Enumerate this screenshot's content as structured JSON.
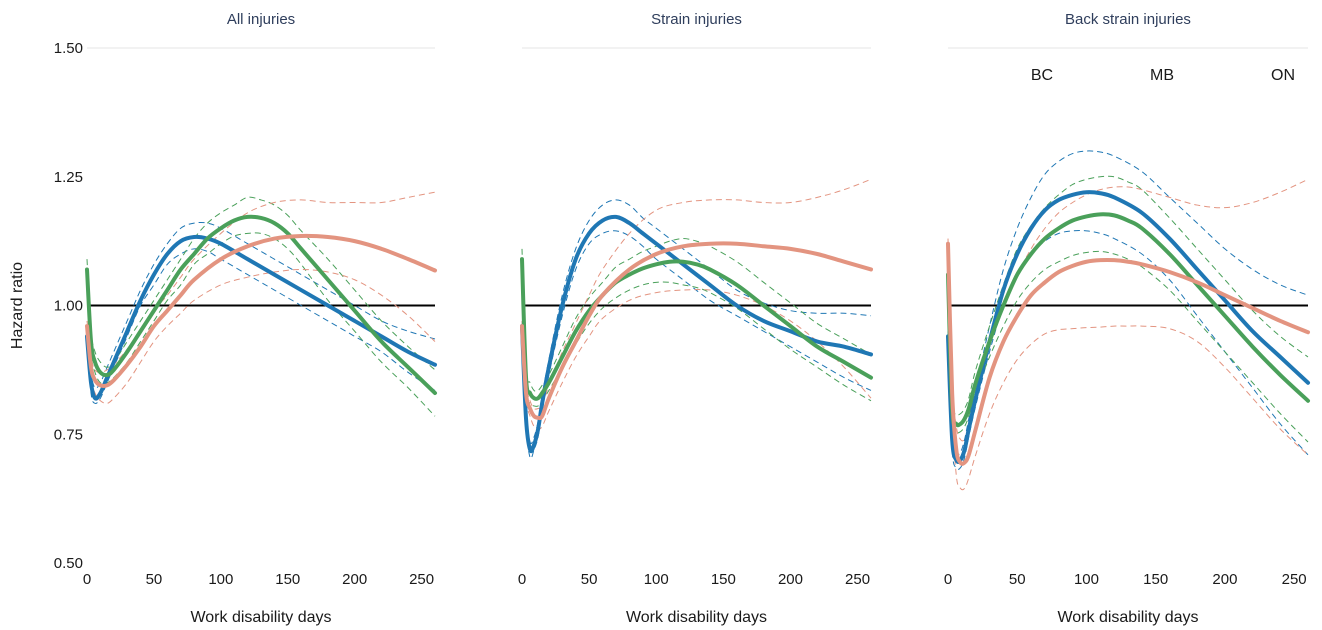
{
  "chart_data": {
    "type": "line",
    "ylabel": "Hazard ratio",
    "xlabel": "Work disability days",
    "ylim": [
      0.5,
      1.5
    ],
    "xlim": [
      0,
      260
    ],
    "yticks": [
      "0.50",
      "0.75",
      "1.00",
      "1.25",
      "1.50"
    ],
    "xticks": [
      "0",
      "50",
      "100",
      "150",
      "200",
      "250"
    ],
    "reference_line": 1.0,
    "legend": [
      "BC",
      "MB",
      "ON"
    ],
    "legend_placement": "top-right of third panel",
    "series_colors": {
      "BC": "#1f77b4",
      "MB": "#4aa05a",
      "ON": "#e39480"
    },
    "panels": [
      {
        "title": "All injuries",
        "series": [
          {
            "name": "BC",
            "x": [
              0,
              3,
              6,
              10,
              15,
              20,
              30,
              40,
              50,
              60,
              70,
              80,
              90,
              100,
              120,
              140,
              160,
              180,
              200,
              220,
              240,
              260
            ],
            "y": [
              0.94,
              0.85,
              0.82,
              0.83,
              0.86,
              0.89,
              0.95,
              1.01,
              1.06,
              1.1,
              1.125,
              1.133,
              1.13,
              1.12,
              1.09,
              1.06,
              1.03,
              1.0,
              0.97,
              0.94,
              0.91,
              0.885
            ],
            "lower": [
              0.93,
              0.83,
              0.81,
              0.82,
              0.85,
              0.88,
              0.94,
              1.0,
              1.04,
              1.08,
              1.1,
              1.11,
              1.105,
              1.09,
              1.06,
              1.03,
              1.0,
              0.97,
              0.94,
              0.91,
              0.87,
              0.835
            ],
            "upper": [
              0.95,
              0.87,
              0.84,
              0.85,
              0.88,
              0.91,
              0.97,
              1.03,
              1.08,
              1.12,
              1.15,
              1.16,
              1.16,
              1.15,
              1.12,
              1.09,
              1.06,
              1.03,
              1.0,
              0.97,
              0.95,
              0.935
            ]
          },
          {
            "name": "MB",
            "x": [
              0,
              3,
              6,
              10,
              15,
              20,
              30,
              40,
              50,
              60,
              70,
              80,
              90,
              100,
              110,
              120,
              130,
              140,
              150,
              160,
              180,
              200,
              220,
              240,
              260
            ],
            "y": [
              1.07,
              0.93,
              0.89,
              0.87,
              0.865,
              0.875,
              0.91,
              0.95,
              0.99,
              1.03,
              1.07,
              1.1,
              1.13,
              1.15,
              1.165,
              1.172,
              1.17,
              1.16,
              1.14,
              1.11,
              1.05,
              0.99,
              0.93,
              0.88,
              0.83
            ],
            "lower": [
              1.05,
              0.91,
              0.87,
              0.85,
              0.85,
              0.86,
              0.89,
              0.93,
              0.97,
              1.01,
              1.04,
              1.08,
              1.1,
              1.12,
              1.135,
              1.14,
              1.14,
              1.13,
              1.11,
              1.08,
              1.01,
              0.95,
              0.89,
              0.84,
              0.785
            ],
            "upper": [
              1.09,
              0.95,
              0.91,
              0.89,
              0.88,
              0.89,
              0.93,
              0.97,
              1.01,
              1.05,
              1.09,
              1.13,
              1.16,
              1.18,
              1.195,
              1.21,
              1.205,
              1.195,
              1.175,
              1.145,
              1.09,
              1.03,
              0.97,
              0.92,
              0.875
            ]
          },
          {
            "name": "ON",
            "x": [
              0,
              3,
              6,
              10,
              15,
              20,
              30,
              40,
              50,
              60,
              70,
              80,
              100,
              120,
              140,
              160,
              180,
              200,
              220,
              240,
              260
            ],
            "y": [
              0.96,
              0.88,
              0.855,
              0.845,
              0.845,
              0.855,
              0.885,
              0.92,
              0.96,
              0.99,
              1.02,
              1.05,
              1.09,
              1.115,
              1.13,
              1.135,
              1.133,
              1.125,
              1.11,
              1.09,
              1.068
            ],
            "lower": [
              0.95,
              0.86,
              0.83,
              0.815,
              0.81,
              0.82,
              0.85,
              0.89,
              0.93,
              0.96,
              0.985,
              1.01,
              1.04,
              1.055,
              1.065,
              1.07,
              1.065,
              1.05,
              1.02,
              0.98,
              0.93
            ],
            "upper": [
              0.97,
              0.9,
              0.875,
              0.87,
              0.875,
              0.885,
              0.915,
              0.95,
              0.99,
              1.02,
              1.055,
              1.09,
              1.14,
              1.18,
              1.2,
              1.205,
              1.2,
              1.2,
              1.2,
              1.21,
              1.22
            ]
          }
        ]
      },
      {
        "title": "Strain injuries",
        "series": [
          {
            "name": "BC",
            "x": [
              0,
              3,
              6,
              9,
              12,
              15,
              20,
              30,
              40,
              50,
              60,
              70,
              80,
              90,
              100,
              120,
              140,
              160,
              180,
              200,
              220,
              240,
              260
            ],
            "y": [
              0.96,
              0.78,
              0.72,
              0.73,
              0.76,
              0.81,
              0.88,
              1.0,
              1.09,
              1.14,
              1.165,
              1.172,
              1.16,
              1.14,
              1.12,
              1.08,
              1.04,
              1.0,
              0.97,
              0.95,
              0.93,
              0.92,
              0.905
            ],
            "lower": [
              0.95,
              0.77,
              0.705,
              0.72,
              0.745,
              0.795,
              0.865,
              0.98,
              1.07,
              1.12,
              1.14,
              1.145,
              1.135,
              1.115,
              1.09,
              1.05,
              1.01,
              0.98,
              0.95,
              0.92,
              0.89,
              0.86,
              0.835
            ],
            "upper": [
              0.97,
              0.8,
              0.735,
              0.745,
              0.775,
              0.825,
              0.895,
              1.02,
              1.11,
              1.165,
              1.195,
              1.205,
              1.195,
              1.17,
              1.15,
              1.11,
              1.07,
              1.03,
              1.005,
              0.99,
              0.985,
              0.985,
              0.98
            ]
          },
          {
            "name": "MB",
            "x": [
              0,
              3,
              6,
              9,
              12,
              15,
              20,
              30,
              40,
              50,
              60,
              70,
              80,
              90,
              100,
              110,
              120,
              130,
              140,
              160,
              180,
              200,
              220,
              240,
              260
            ],
            "y": [
              1.09,
              0.86,
              0.83,
              0.82,
              0.82,
              0.83,
              0.85,
              0.9,
              0.95,
              0.99,
              1.02,
              1.045,
              1.06,
              1.072,
              1.08,
              1.085,
              1.085,
              1.08,
              1.07,
              1.04,
              1.0,
              0.96,
              0.92,
              0.89,
              0.86
            ],
            "lower": [
              1.07,
              0.84,
              0.81,
              0.805,
              0.805,
              0.815,
              0.835,
              0.88,
              0.925,
              0.965,
              0.995,
              1.015,
              1.03,
              1.04,
              1.045,
              1.045,
              1.04,
              1.035,
              1.025,
              0.995,
              0.955,
              0.915,
              0.88,
              0.845,
              0.815
            ],
            "upper": [
              1.11,
              0.88,
              0.85,
              0.835,
              0.835,
              0.845,
              0.865,
              0.92,
              0.975,
              1.015,
              1.045,
              1.075,
              1.09,
              1.105,
              1.115,
              1.125,
              1.13,
              1.125,
              1.115,
              1.085,
              1.045,
              1.005,
              0.965,
              0.935,
              0.905
            ]
          },
          {
            "name": "ON",
            "x": [
              0,
              3,
              6,
              9,
              12,
              15,
              20,
              30,
              40,
              50,
              60,
              80,
              100,
              120,
              140,
              160,
              180,
              200,
              220,
              240,
              260
            ],
            "y": [
              0.96,
              0.83,
              0.8,
              0.785,
              0.782,
              0.785,
              0.82,
              0.88,
              0.93,
              0.98,
              1.02,
              1.07,
              1.1,
              1.115,
              1.12,
              1.12,
              1.115,
              1.11,
              1.1,
              1.085,
              1.07
            ],
            "lower": [
              0.95,
              0.82,
              0.785,
              0.765,
              0.76,
              0.765,
              0.795,
              0.85,
              0.9,
              0.94,
              0.975,
              1.01,
              1.025,
              1.03,
              1.03,
              1.02,
              1.0,
              0.97,
              0.93,
              0.88,
              0.82
            ],
            "upper": [
              0.97,
              0.85,
              0.815,
              0.8,
              0.8,
              0.805,
              0.845,
              0.91,
              0.965,
              1.02,
              1.07,
              1.14,
              1.185,
              1.2,
              1.205,
              1.205,
              1.2,
              1.2,
              1.21,
              1.225,
              1.245
            ]
          }
        ]
      },
      {
        "title": "Back strain injuries",
        "series": [
          {
            "name": "BC",
            "x": [
              0,
              3,
              6,
              9,
              12,
              15,
              20,
              30,
              40,
              50,
              60,
              70,
              80,
              90,
              100,
              110,
              120,
              140,
              160,
              180,
              200,
              220,
              240,
              260
            ],
            "y": [
              0.94,
              0.74,
              0.7,
              0.7,
              0.72,
              0.76,
              0.82,
              0.93,
              1.03,
              1.1,
              1.15,
              1.185,
              1.205,
              1.215,
              1.22,
              1.218,
              1.21,
              1.18,
              1.13,
              1.07,
              1.01,
              0.95,
              0.9,
              0.85
            ],
            "lower": [
              0.93,
              0.72,
              0.685,
              0.685,
              0.705,
              0.745,
              0.805,
              0.91,
              1.0,
              1.06,
              1.1,
              1.125,
              1.14,
              1.145,
              1.145,
              1.14,
              1.13,
              1.1,
              1.05,
              0.98,
              0.91,
              0.84,
              0.77,
              0.71
            ],
            "upper": [
              0.95,
              0.76,
              0.715,
              0.715,
              0.74,
              0.78,
              0.84,
              0.96,
              1.07,
              1.15,
              1.21,
              1.255,
              1.28,
              1.295,
              1.3,
              1.298,
              1.29,
              1.26,
              1.21,
              1.16,
              1.11,
              1.07,
              1.04,
              1.02
            ]
          },
          {
            "name": "MB",
            "x": [
              0,
              3,
              6,
              9,
              12,
              15,
              20,
              30,
              40,
              50,
              60,
              70,
              80,
              90,
              100,
              110,
              120,
              130,
              140,
              160,
              180,
              200,
              220,
              240,
              260
            ],
            "y": [
              1.06,
              0.8,
              0.77,
              0.77,
              0.78,
              0.8,
              0.85,
              0.93,
              1.0,
              1.06,
              1.1,
              1.13,
              1.15,
              1.165,
              1.173,
              1.177,
              1.175,
              1.165,
              1.15,
              1.1,
              1.04,
              0.98,
              0.92,
              0.865,
              0.815
            ],
            "lower": [
              1.05,
              0.78,
              0.755,
              0.755,
              0.765,
              0.785,
              0.83,
              0.9,
              0.96,
              1.01,
              1.045,
              1.07,
              1.085,
              1.097,
              1.103,
              1.105,
              1.1,
              1.09,
              1.075,
              1.03,
              0.97,
              0.91,
              0.85,
              0.79,
              0.735
            ],
            "upper": [
              1.07,
              0.82,
              0.79,
              0.79,
              0.8,
              0.82,
              0.875,
              0.96,
              1.04,
              1.11,
              1.155,
              1.19,
              1.215,
              1.235,
              1.245,
              1.25,
              1.25,
              1.24,
              1.225,
              1.17,
              1.11,
              1.05,
              0.99,
              0.94,
              0.9
            ]
          },
          {
            "name": "ON",
            "x": [
              0,
              3,
              6,
              9,
              12,
              15,
              20,
              30,
              40,
              50,
              60,
              70,
              80,
              90,
              100,
              110,
              120,
              130,
              140,
              160,
              180,
              200,
              220,
              240,
              260
            ],
            "y": [
              1.12,
              0.83,
              0.72,
              0.695,
              0.695,
              0.71,
              0.76,
              0.86,
              0.93,
              0.98,
              1.02,
              1.045,
              1.065,
              1.077,
              1.085,
              1.088,
              1.088,
              1.085,
              1.08,
              1.065,
              1.045,
              1.02,
              0.995,
              0.97,
              0.948
            ],
            "lower": [
              1.11,
              0.8,
              0.67,
              0.645,
              0.645,
              0.665,
              0.71,
              0.79,
              0.85,
              0.895,
              0.925,
              0.945,
              0.953,
              0.955,
              0.957,
              0.958,
              0.96,
              0.96,
              0.96,
              0.955,
              0.93,
              0.88,
              0.82,
              0.76,
              0.71
            ],
            "upper": [
              1.13,
              0.85,
              0.765,
              0.74,
              0.74,
              0.76,
              0.81,
              0.92,
              1.0,
              1.06,
              1.11,
              1.15,
              1.18,
              1.2,
              1.215,
              1.225,
              1.23,
              1.23,
              1.225,
              1.21,
              1.195,
              1.19,
              1.2,
              1.22,
              1.245
            ]
          }
        ]
      }
    ]
  }
}
